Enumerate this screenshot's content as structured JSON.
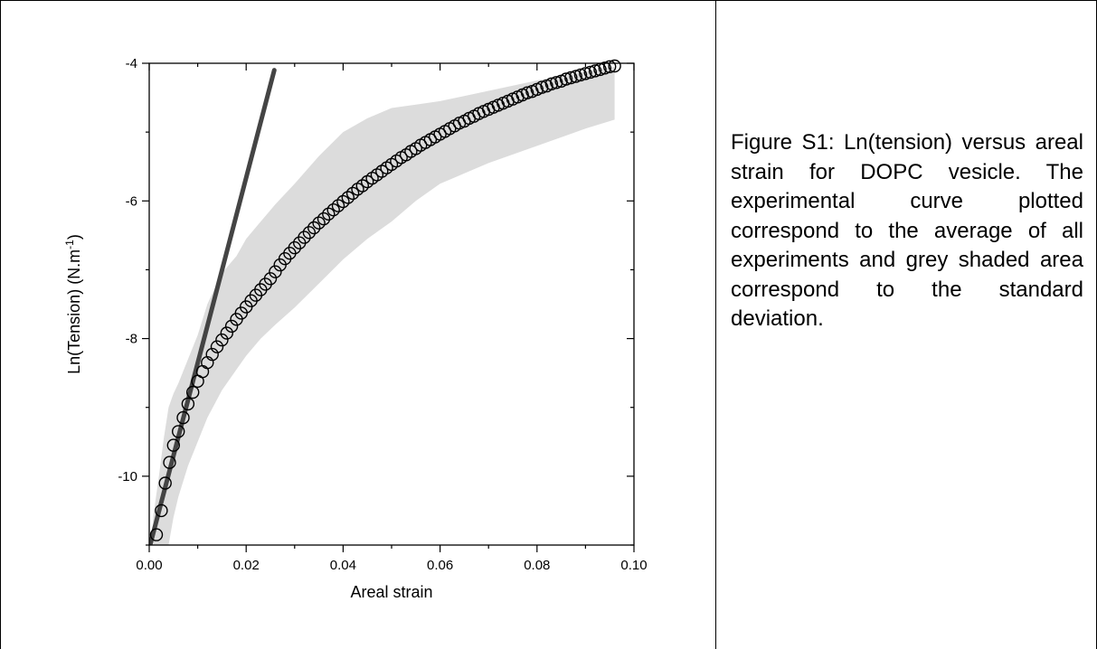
{
  "caption": "Figure S1: Ln(tension) versus areal strain for DOPC vesicle. The experimental curve plotted correspond to the average of all experiments and grey shaded area correspond to the standard deviation.",
  "chart_data": {
    "type": "scatter",
    "title": "",
    "xlabel": "Areal strain",
    "ylabel_main": "Ln(Tension) (N.m",
    "ylabel_sup": "-1",
    "ylabel_close": ")",
    "xlim": [
      0.0,
      0.1
    ],
    "ylim": [
      -11.0,
      -4.0
    ],
    "xticks": [
      0.0,
      0.02,
      0.04,
      0.06,
      0.08,
      0.1
    ],
    "xtick_labels": [
      "0.00",
      "0.02",
      "0.04",
      "0.06",
      "0.08",
      "0.10"
    ],
    "yticks": [
      -10,
      -8,
      -6,
      -4
    ],
    "ytick_labels": [
      "-10",
      "-8",
      "-6",
      "-4"
    ],
    "grid": false,
    "colors": {
      "points": "#000000",
      "fit_line": "#444444",
      "band": "#dcdcdc"
    },
    "fit_line": {
      "x": [
        0.0,
        0.0258
      ],
      "y": [
        -11.05,
        -4.1
      ]
    },
    "band": {
      "x": [
        0.0008,
        0.002,
        0.003,
        0.004,
        0.005,
        0.006,
        0.008,
        0.01,
        0.012,
        0.015,
        0.018,
        0.02,
        0.023,
        0.026,
        0.03,
        0.035,
        0.04,
        0.045,
        0.05,
        0.055,
        0.06,
        0.07,
        0.08,
        0.09,
        0.096
      ],
      "upper": [
        -10.6,
        -10.0,
        -9.45,
        -9.0,
        -8.8,
        -8.65,
        -8.3,
        -7.95,
        -7.5,
        -7.05,
        -6.8,
        -6.55,
        -6.3,
        -6.05,
        -5.75,
        -5.35,
        -5.0,
        -4.8,
        -4.65,
        -4.6,
        -4.55,
        -4.4,
        -4.25,
        -4.12,
        -4.05
      ],
      "lower": [
        -11.0,
        -11.0,
        -11.0,
        -11.0,
        -10.6,
        -10.3,
        -9.85,
        -9.5,
        -9.15,
        -8.75,
        -8.45,
        -8.25,
        -8.0,
        -7.8,
        -7.55,
        -7.2,
        -6.85,
        -6.55,
        -6.3,
        -6.0,
        -5.75,
        -5.45,
        -5.2,
        -4.95,
        -4.82
      ]
    },
    "points": {
      "x": [
        0.0015,
        0.0025,
        0.0033,
        0.0042,
        0.005,
        0.006,
        0.007,
        0.008,
        0.009,
        0.01,
        0.011,
        0.012,
        0.013,
        0.014,
        0.015,
        0.016,
        0.017,
        0.018,
        0.019,
        0.02,
        0.021,
        0.022,
        0.023,
        0.024,
        0.025,
        0.026,
        0.027,
        0.028,
        0.029,
        0.03,
        0.031,
        0.032,
        0.033,
        0.034,
        0.035,
        0.036,
        0.037,
        0.038,
        0.039,
        0.04,
        0.041,
        0.042,
        0.043,
        0.044,
        0.045,
        0.046,
        0.047,
        0.048,
        0.049,
        0.05,
        0.051,
        0.052,
        0.053,
        0.054,
        0.055,
        0.056,
        0.057,
        0.058,
        0.059,
        0.06,
        0.061,
        0.062,
        0.063,
        0.064,
        0.065,
        0.066,
        0.067,
        0.068,
        0.069,
        0.07,
        0.071,
        0.072,
        0.073,
        0.074,
        0.075,
        0.076,
        0.077,
        0.078,
        0.079,
        0.08,
        0.081,
        0.082,
        0.083,
        0.084,
        0.085,
        0.086,
        0.087,
        0.088,
        0.089,
        0.09,
        0.091,
        0.092,
        0.093,
        0.094,
        0.095,
        0.096
      ],
      "y": [
        -10.85,
        -10.5,
        -10.1,
        -9.8,
        -9.55,
        -9.35,
        -9.15,
        -8.95,
        -8.78,
        -8.62,
        -8.48,
        -8.35,
        -8.23,
        -8.12,
        -8.02,
        -7.92,
        -7.82,
        -7.72,
        -7.63,
        -7.54,
        -7.45,
        -7.37,
        -7.29,
        -7.21,
        -7.13,
        -7.03,
        -6.93,
        -6.84,
        -6.76,
        -6.68,
        -6.61,
        -6.53,
        -6.46,
        -6.39,
        -6.32,
        -6.26,
        -6.19,
        -6.13,
        -6.07,
        -6.01,
        -5.95,
        -5.89,
        -5.83,
        -5.78,
        -5.72,
        -5.67,
        -5.62,
        -5.57,
        -5.52,
        -5.47,
        -5.42,
        -5.37,
        -5.33,
        -5.28,
        -5.24,
        -5.19,
        -5.15,
        -5.11,
        -5.07,
        -5.03,
        -4.99,
        -4.95,
        -4.91,
        -4.87,
        -4.84,
        -4.8,
        -4.77,
        -4.73,
        -4.7,
        -4.67,
        -4.64,
        -4.61,
        -4.58,
        -4.55,
        -4.52,
        -4.49,
        -4.46,
        -4.43,
        -4.41,
        -4.38,
        -4.35,
        -4.33,
        -4.3,
        -4.28,
        -4.26,
        -4.23,
        -4.21,
        -4.19,
        -4.17,
        -4.15,
        -4.13,
        -4.11,
        -4.09,
        -4.07,
        -4.05,
        -4.04
      ]
    }
  }
}
